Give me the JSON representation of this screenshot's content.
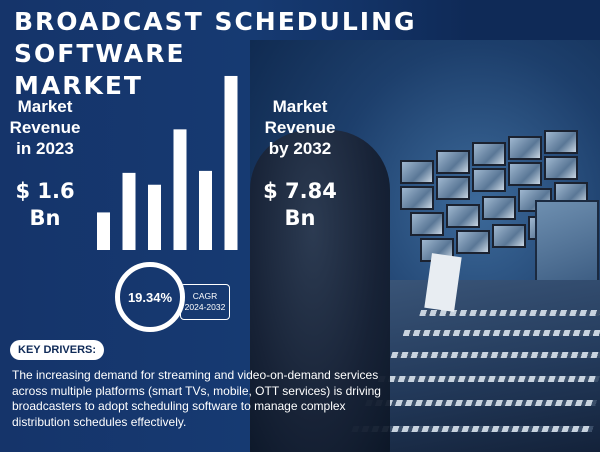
{
  "header": {
    "title_line1": "BROADCAST SCHEDULING SOFTWARE",
    "title_line2": "MARKET"
  },
  "stats": {
    "left_label": "Market\nRevenue\nin 2023",
    "left_value": "$ 1.6\nBn",
    "right_label": "Market\nRevenue\nby 2032",
    "right_value": "$ 7.84\nBn"
  },
  "cagr": {
    "value": "19.34%",
    "label_line1": "CAGR",
    "label_line2": "2024-2032"
  },
  "drivers": {
    "heading": "KEY DRIVERS:",
    "text": "The increasing demand for streaming and video-on-demand services across multiple platforms (smart TVs, mobile, OTT services) is driving broadcasters to adopt scheduling software to manage complex distribution schedules effectively."
  },
  "chart_data": {
    "type": "bar",
    "categories": [
      "",
      "",
      "",
      "",
      "",
      ""
    ],
    "values": [
      38,
      78,
      66,
      122,
      80,
      176
    ],
    "ylim": [
      0,
      180
    ],
    "grid": false,
    "legend": "none",
    "bar_color": "#ffffff"
  },
  "colors": {
    "background": "#0f2a57",
    "text": "#ffffff",
    "pill_text": "#0f2a57"
  }
}
